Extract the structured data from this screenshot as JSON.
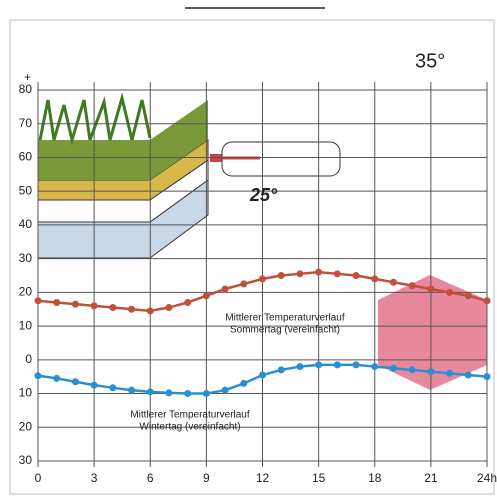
{
  "chart_data": {
    "type": "line",
    "annotations": {
      "plus": "+",
      "hot": "35°",
      "roof": "25°",
      "summer_note": [
        "Mittlerer Temperaturverlauf",
        "Sommertag (vereinfacht)"
      ],
      "winter_note": [
        "Mittlerer Temperaturverlauf",
        "Wintertag (vereinfacht)"
      ]
    },
    "x": [
      0,
      1,
      2,
      3,
      4,
      5,
      6,
      7,
      8,
      9,
      10,
      11,
      12,
      13,
      14,
      15,
      16,
      17,
      18,
      19,
      20,
      21,
      22,
      23,
      24
    ],
    "series": [
      {
        "color": "#c0503a",
        "values": [
          17.5,
          17,
          16.5,
          16,
          15.5,
          15,
          14.5,
          15.5,
          17,
          19,
          21,
          22.5,
          24,
          25,
          25.5,
          26,
          25.5,
          25,
          24,
          23,
          22,
          21,
          20,
          19,
          17.5
        ]
      },
      {
        "color": "#2a8fd0",
        "values": [
          -4.7,
          -5.5,
          -6.5,
          -7.5,
          -8.3,
          -9,
          -9.5,
          -9.8,
          -10,
          -10,
          -9,
          -7,
          -4.5,
          -3,
          -2,
          -1.5,
          -1.5,
          -1.5,
          -2,
          -2.5,
          -3,
          -3.5,
          -4,
          -4.5,
          -5
        ]
      }
    ],
    "xlim": [
      0,
      24
    ],
    "xticks": [
      0,
      3,
      6,
      9,
      12,
      15,
      18,
      21,
      {
        "value": 24,
        "label": "24h"
      }
    ],
    "ylim": [
      -30,
      80
    ],
    "yticks": [
      80,
      70,
      60,
      50,
      40,
      30,
      20,
      10,
      0,
      {
        "value": -10,
        "label": "10"
      },
      {
        "value": -20,
        "label": "20"
      },
      {
        "value": -30,
        "label": "30"
      }
    ],
    "grid": true
  }
}
